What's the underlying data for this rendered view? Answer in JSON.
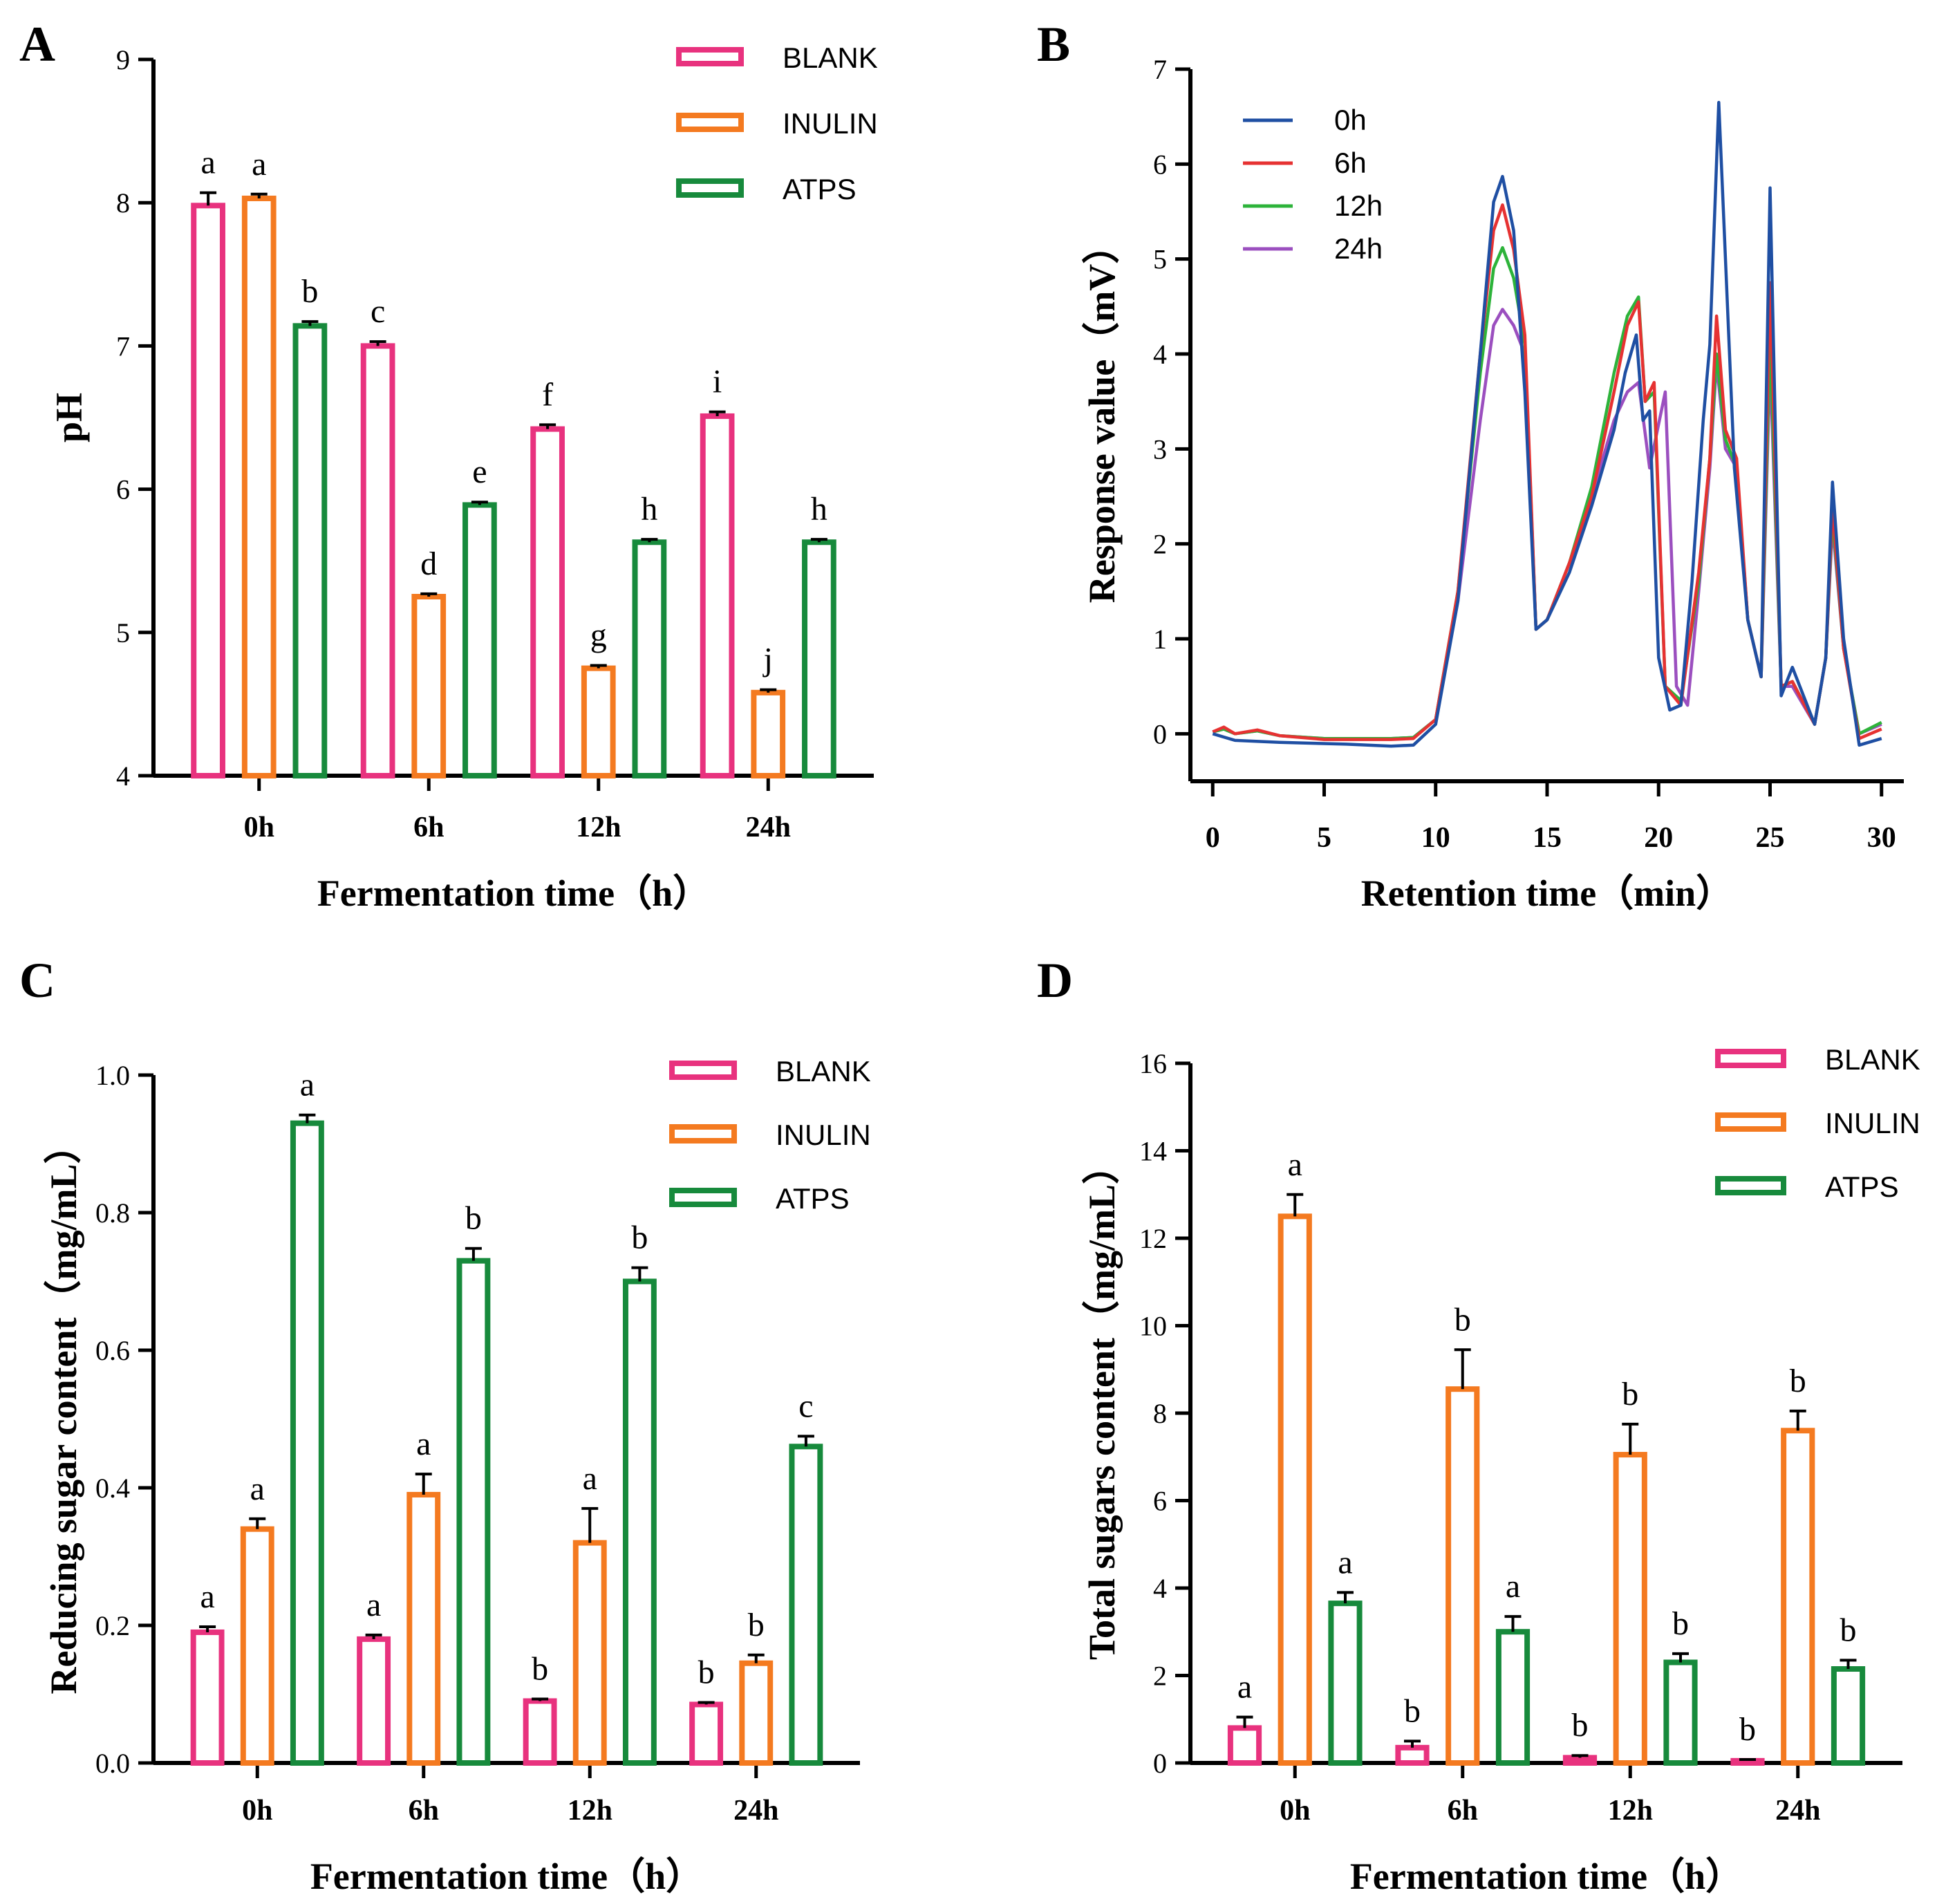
{
  "chart_data": [
    {
      "panel": "A",
      "type": "bar",
      "xlabel": "Fermentation time（h）",
      "ylabel": "pH",
      "ylim": [
        4,
        9
      ],
      "yticks": [
        "4",
        "5",
        "6",
        "7",
        "8",
        "9"
      ],
      "categories": [
        "0h",
        "6h",
        "12h",
        "24h"
      ],
      "legend_position": "top-right",
      "series": [
        {
          "name": "BLANK",
          "color": "#e8327e",
          "values": [
            7.98,
            7.0,
            6.42,
            6.51
          ],
          "errors": [
            0.09,
            0.03,
            0.03,
            0.03
          ],
          "letters": [
            "a",
            "c",
            "f",
            "i"
          ]
        },
        {
          "name": "INULIN",
          "color": "#f47a20",
          "values": [
            8.03,
            5.25,
            4.75,
            4.58
          ],
          "errors": [
            0.03,
            0.02,
            0.02,
            0.02
          ],
          "letters": [
            "a",
            "d",
            "g",
            "j"
          ]
        },
        {
          "name": "ATPS",
          "color": "#178a3c",
          "values": [
            7.14,
            5.89,
            5.63,
            5.63
          ],
          "errors": [
            0.03,
            0.02,
            0.02,
            0.02
          ],
          "letters": [
            "b",
            "e",
            "h",
            "h"
          ]
        }
      ]
    },
    {
      "panel": "B",
      "type": "line",
      "xlabel": "Retention time（min）",
      "ylabel": "Response value（mV）",
      "xlim": [
        -1,
        31
      ],
      "ylim": [
        -0.5,
        7
      ],
      "xticks": [
        "0",
        "5",
        "10",
        "15",
        "20",
        "25",
        "30"
      ],
      "yticks": [
        "0",
        "1",
        "2",
        "3",
        "4",
        "5",
        "6",
        "7"
      ],
      "legend_position": "top-left",
      "series": [
        {
          "name": "0h",
          "color": "#1f4fa3",
          "points": [
            [
              0,
              0
            ],
            [
              1,
              -0.07
            ],
            [
              3,
              -0.09
            ],
            [
              6,
              -0.11
            ],
            [
              8,
              -0.13
            ],
            [
              9,
              -0.12
            ],
            [
              10,
              0.1
            ],
            [
              11,
              1.4
            ],
            [
              12,
              4.0
            ],
            [
              12.6,
              5.6
            ],
            [
              13,
              5.87
            ],
            [
              13.5,
              5.3
            ],
            [
              14,
              3.6
            ],
            [
              14.5,
              1.1
            ],
            [
              15,
              1.2
            ],
            [
              16,
              1.7
            ],
            [
              17,
              2.4
            ],
            [
              18,
              3.2
            ],
            [
              18.5,
              3.8
            ],
            [
              19,
              4.2
            ],
            [
              19.3,
              3.3
            ],
            [
              19.6,
              3.4
            ],
            [
              20,
              0.8
            ],
            [
              20.5,
              0.25
            ],
            [
              21,
              0.3
            ],
            [
              21.5,
              1.6
            ],
            [
              22,
              3.3
            ],
            [
              22.3,
              4.1
            ],
            [
              22.7,
              6.65
            ],
            [
              23,
              5.0
            ],
            [
              23.4,
              2.8
            ],
            [
              24,
              1.2
            ],
            [
              24.6,
              0.6
            ],
            [
              25,
              5.75
            ],
            [
              25.5,
              0.4
            ],
            [
              26,
              0.7
            ],
            [
              27,
              0.1
            ],
            [
              27.5,
              0.8
            ],
            [
              27.8,
              2.65
            ],
            [
              28.3,
              1.0
            ],
            [
              29,
              -0.12
            ],
            [
              30,
              -0.05
            ]
          ]
        },
        {
          "name": "6h",
          "color": "#e63232",
          "points": [
            [
              0,
              0.02
            ],
            [
              0.5,
              0.07
            ],
            [
              1,
              0
            ],
            [
              2,
              0.04
            ],
            [
              3,
              -0.02
            ],
            [
              5,
              -0.06
            ],
            [
              8,
              -0.06
            ],
            [
              9,
              -0.05
            ],
            [
              10,
              0.15
            ],
            [
              11,
              1.5
            ],
            [
              12,
              4.0
            ],
            [
              12.6,
              5.3
            ],
            [
              13,
              5.57
            ],
            [
              13.5,
              5.1
            ],
            [
              14,
              4.2
            ],
            [
              14.5,
              1.1
            ],
            [
              15,
              1.2
            ],
            [
              16,
              1.8
            ],
            [
              17,
              2.5
            ],
            [
              18,
              3.6
            ],
            [
              18.6,
              4.3
            ],
            [
              19.1,
              4.55
            ],
            [
              19.4,
              3.5
            ],
            [
              19.8,
              3.7
            ],
            [
              20.3,
              0.5
            ],
            [
              21,
              0.3
            ],
            [
              21.8,
              1.7
            ],
            [
              22.3,
              2.9
            ],
            [
              22.6,
              4.4
            ],
            [
              23,
              3.2
            ],
            [
              23.5,
              2.9
            ],
            [
              24,
              1.2
            ],
            [
              24.6,
              0.6
            ],
            [
              25,
              4.75
            ],
            [
              25.5,
              0.5
            ],
            [
              26,
              0.55
            ],
            [
              27,
              0.1
            ],
            [
              27.5,
              0.8
            ],
            [
              27.8,
              2.4
            ],
            [
              28.3,
              0.9
            ],
            [
              29,
              -0.05
            ],
            [
              30,
              0.05
            ]
          ]
        },
        {
          "name": "12h",
          "color": "#2db33a",
          "points": [
            [
              0,
              0.02
            ],
            [
              0.5,
              0.05
            ],
            [
              1,
              0
            ],
            [
              2,
              0.03
            ],
            [
              3,
              -0.02
            ],
            [
              5,
              -0.05
            ],
            [
              8,
              -0.05
            ],
            [
              9,
              -0.04
            ],
            [
              10,
              0.15
            ],
            [
              11,
              1.5
            ],
            [
              12,
              3.8
            ],
            [
              12.6,
              4.9
            ],
            [
              13,
              5.12
            ],
            [
              13.5,
              4.8
            ],
            [
              14,
              4.1
            ],
            [
              14.5,
              1.1
            ],
            [
              15,
              1.2
            ],
            [
              16,
              1.8
            ],
            [
              17,
              2.6
            ],
            [
              18,
              3.8
            ],
            [
              18.6,
              4.4
            ],
            [
              19.1,
              4.6
            ],
            [
              19.4,
              3.5
            ],
            [
              19.8,
              3.6
            ],
            [
              20.3,
              0.5
            ],
            [
              21,
              0.35
            ],
            [
              21.8,
              1.6
            ],
            [
              22.3,
              2.9
            ],
            [
              22.6,
              4.0
            ],
            [
              23,
              3.1
            ],
            [
              23.5,
              2.8
            ],
            [
              24,
              1.2
            ],
            [
              24.6,
              0.6
            ],
            [
              25,
              4.2
            ],
            [
              25.5,
              0.5
            ],
            [
              26,
              0.55
            ],
            [
              27,
              0.1
            ],
            [
              27.5,
              0.8
            ],
            [
              27.8,
              2.3
            ],
            [
              28.3,
              0.9
            ],
            [
              29,
              0
            ],
            [
              30,
              0.12
            ]
          ]
        },
        {
          "name": "24h",
          "color": "#9b4fbf",
          "points": [
            [
              0,
              0.02
            ],
            [
              0.5,
              0.05
            ],
            [
              1,
              0
            ],
            [
              2,
              0.03
            ],
            [
              3,
              -0.02
            ],
            [
              5,
              -0.05
            ],
            [
              8,
              -0.05
            ],
            [
              9,
              -0.04
            ],
            [
              10,
              0.15
            ],
            [
              11,
              1.4
            ],
            [
              12,
              3.3
            ],
            [
              12.6,
              4.3
            ],
            [
              13,
              4.47
            ],
            [
              13.5,
              4.3
            ],
            [
              14,
              4.0
            ],
            [
              14.5,
              1.1
            ],
            [
              15,
              1.2
            ],
            [
              16,
              1.8
            ],
            [
              17,
              2.5
            ],
            [
              18,
              3.3
            ],
            [
              18.6,
              3.6
            ],
            [
              19.1,
              3.7
            ],
            [
              19.6,
              2.8
            ],
            [
              20.3,
              3.6
            ],
            [
              20.8,
              0.5
            ],
            [
              21.3,
              0.3
            ],
            [
              21.8,
              1.5
            ],
            [
              22.3,
              2.8
            ],
            [
              22.6,
              3.9
            ],
            [
              23,
              3.0
            ],
            [
              23.5,
              2.8
            ],
            [
              24,
              1.2
            ],
            [
              24.6,
              0.6
            ],
            [
              25,
              3.9
            ],
            [
              25.5,
              0.5
            ],
            [
              26,
              0.5
            ],
            [
              27,
              0.1
            ],
            [
              27.5,
              0.8
            ],
            [
              27.8,
              2.2
            ],
            [
              28.3,
              0.9
            ],
            [
              29,
              0
            ],
            [
              30,
              0.1
            ]
          ]
        }
      ]
    },
    {
      "panel": "C",
      "type": "bar",
      "xlabel": "Fermentation time（h）",
      "ylabel": "Reducing sugar content（mg/mL）",
      "ylim": [
        0,
        1.0
      ],
      "yticks": [
        "0.0",
        "0.2",
        "0.4",
        "0.6",
        "0.8",
        "1.0"
      ],
      "categories": [
        "0h",
        "6h",
        "12h",
        "24h"
      ],
      "legend_position": "top-right",
      "series": [
        {
          "name": "BLANK",
          "color": "#e8327e",
          "values": [
            0.19,
            0.18,
            0.09,
            0.085
          ],
          "errors": [
            0.008,
            0.006,
            0.003,
            0.003
          ],
          "letters": [
            "a",
            "a",
            "b",
            "b"
          ]
        },
        {
          "name": "INULIN",
          "color": "#f47a20",
          "values": [
            0.34,
            0.39,
            0.32,
            0.145
          ],
          "errors": [
            0.015,
            0.03,
            0.05,
            0.012
          ],
          "letters": [
            "a",
            "a",
            "a",
            "b"
          ]
        },
        {
          "name": "ATPS",
          "color": "#178a3c",
          "values": [
            0.93,
            0.73,
            0.7,
            0.46
          ],
          "errors": [
            0.012,
            0.018,
            0.02,
            0.015
          ],
          "letters": [
            "a",
            "b",
            "b",
            "c"
          ]
        }
      ]
    },
    {
      "panel": "D",
      "type": "bar",
      "xlabel": "Fermentation time（h）",
      "ylabel": "Total sugars content（mg/mL）",
      "ylim": [
        0,
        16
      ],
      "yticks": [
        "0",
        "2",
        "4",
        "6",
        "8",
        "10",
        "12",
        "14",
        "16"
      ],
      "categories": [
        "0h",
        "6h",
        "12h",
        "24h"
      ],
      "legend_position": "top-right",
      "series": [
        {
          "name": "BLANK",
          "color": "#e8327e",
          "values": [
            0.8,
            0.35,
            0.12,
            0.05
          ],
          "errors": [
            0.25,
            0.15,
            0.05,
            0.03
          ],
          "letters": [
            "a",
            "b",
            "b",
            "b"
          ]
        },
        {
          "name": "INULIN",
          "color": "#f47a20",
          "values": [
            12.5,
            8.55,
            7.05,
            7.6
          ],
          "errors": [
            0.5,
            0.9,
            0.7,
            0.45
          ],
          "letters": [
            "a",
            "b",
            "b",
            "b"
          ]
        },
        {
          "name": "ATPS",
          "color": "#178a3c",
          "values": [
            3.65,
            3.0,
            2.3,
            2.15
          ],
          "errors": [
            0.25,
            0.35,
            0.2,
            0.2
          ],
          "letters": [
            "a",
            "a",
            "b",
            "b"
          ]
        }
      ]
    }
  ]
}
